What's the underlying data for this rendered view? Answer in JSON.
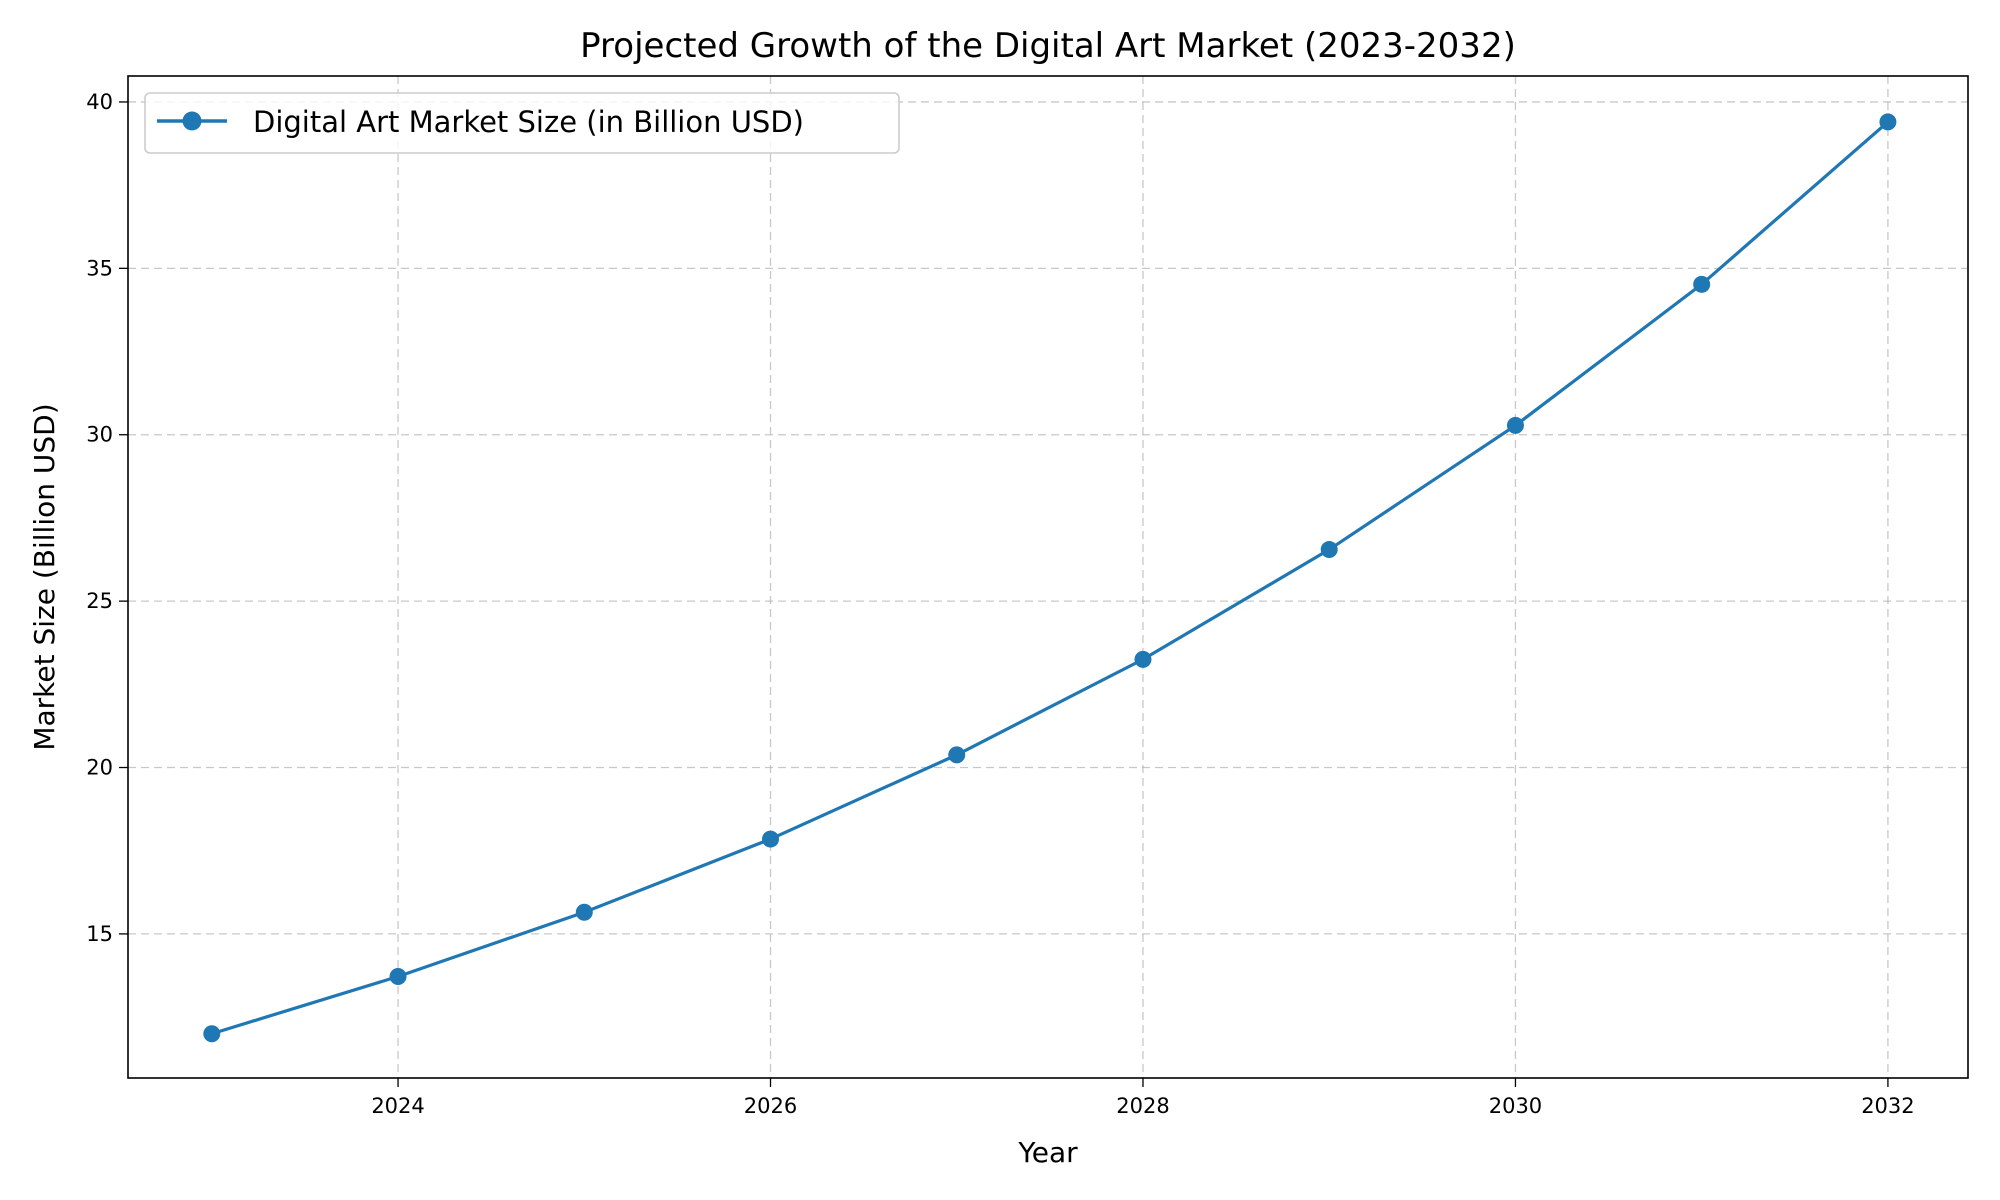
{
  "chart_data": {
    "type": "line",
    "title": "Projected Growth of the Digital Art Market (2023-2032)",
    "xlabel": "Year",
    "ylabel": "Market Size (Billion USD)",
    "x": [
      2023,
      2024,
      2025,
      2026,
      2027,
      2028,
      2029,
      2030,
      2031,
      2032
    ],
    "series": [
      {
        "name": "Digital Art Market Size (in Billion USD)",
        "values": [
          12.0,
          13.72,
          15.65,
          17.85,
          20.38,
          23.25,
          26.55,
          30.28,
          34.52,
          39.4
        ],
        "color": "#1f77b4",
        "marker": "circle"
      }
    ],
    "xlim": [
      2022.55,
      2032.43
    ],
    "ylim": [
      10.67,
      40.78
    ],
    "xticks": [
      "2024",
      "2026",
      "2028",
      "2030",
      "2032"
    ],
    "yticks": [
      "15",
      "20",
      "25",
      "30",
      "35",
      "40"
    ],
    "grid": true,
    "legend_position": "top-left"
  }
}
